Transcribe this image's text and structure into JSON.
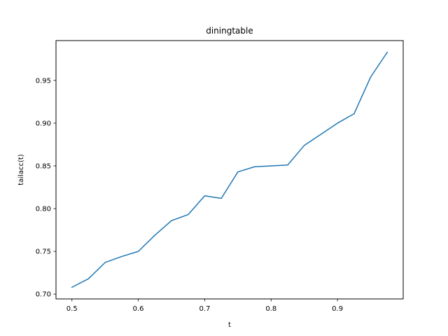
{
  "chart_data": {
    "type": "line",
    "title": "diningtable",
    "xlabel": "t",
    "ylabel": "tailacc(t)",
    "xlim": [
      0.476,
      0.999
    ],
    "ylim": [
      0.6944,
      0.9966
    ],
    "xticks": [
      0.5,
      0.6,
      0.7,
      0.8,
      0.9
    ],
    "xtick_labels": [
      "0.5",
      "0.6",
      "0.7",
      "0.8",
      "0.9"
    ],
    "yticks": [
      0.7,
      0.75,
      0.8,
      0.85,
      0.9,
      0.95
    ],
    "ytick_labels": [
      "0.70",
      "0.75",
      "0.80",
      "0.85",
      "0.90",
      "0.95"
    ],
    "grid": false,
    "series": [
      {
        "color": "#1f77b4",
        "x": [
          0.5,
          0.525,
          0.55,
          0.575,
          0.6,
          0.625,
          0.65,
          0.675,
          0.7,
          0.725,
          0.75,
          0.775,
          0.8,
          0.825,
          0.85,
          0.875,
          0.9,
          0.925,
          0.95,
          0.975
        ],
        "y": [
          0.708,
          0.718,
          0.737,
          0.744,
          0.75,
          0.769,
          0.786,
          0.793,
          0.815,
          0.812,
          0.843,
          0.849,
          0.85,
          0.851,
          0.874,
          0.887,
          0.9,
          0.911,
          0.954,
          0.983
        ]
      }
    ]
  }
}
